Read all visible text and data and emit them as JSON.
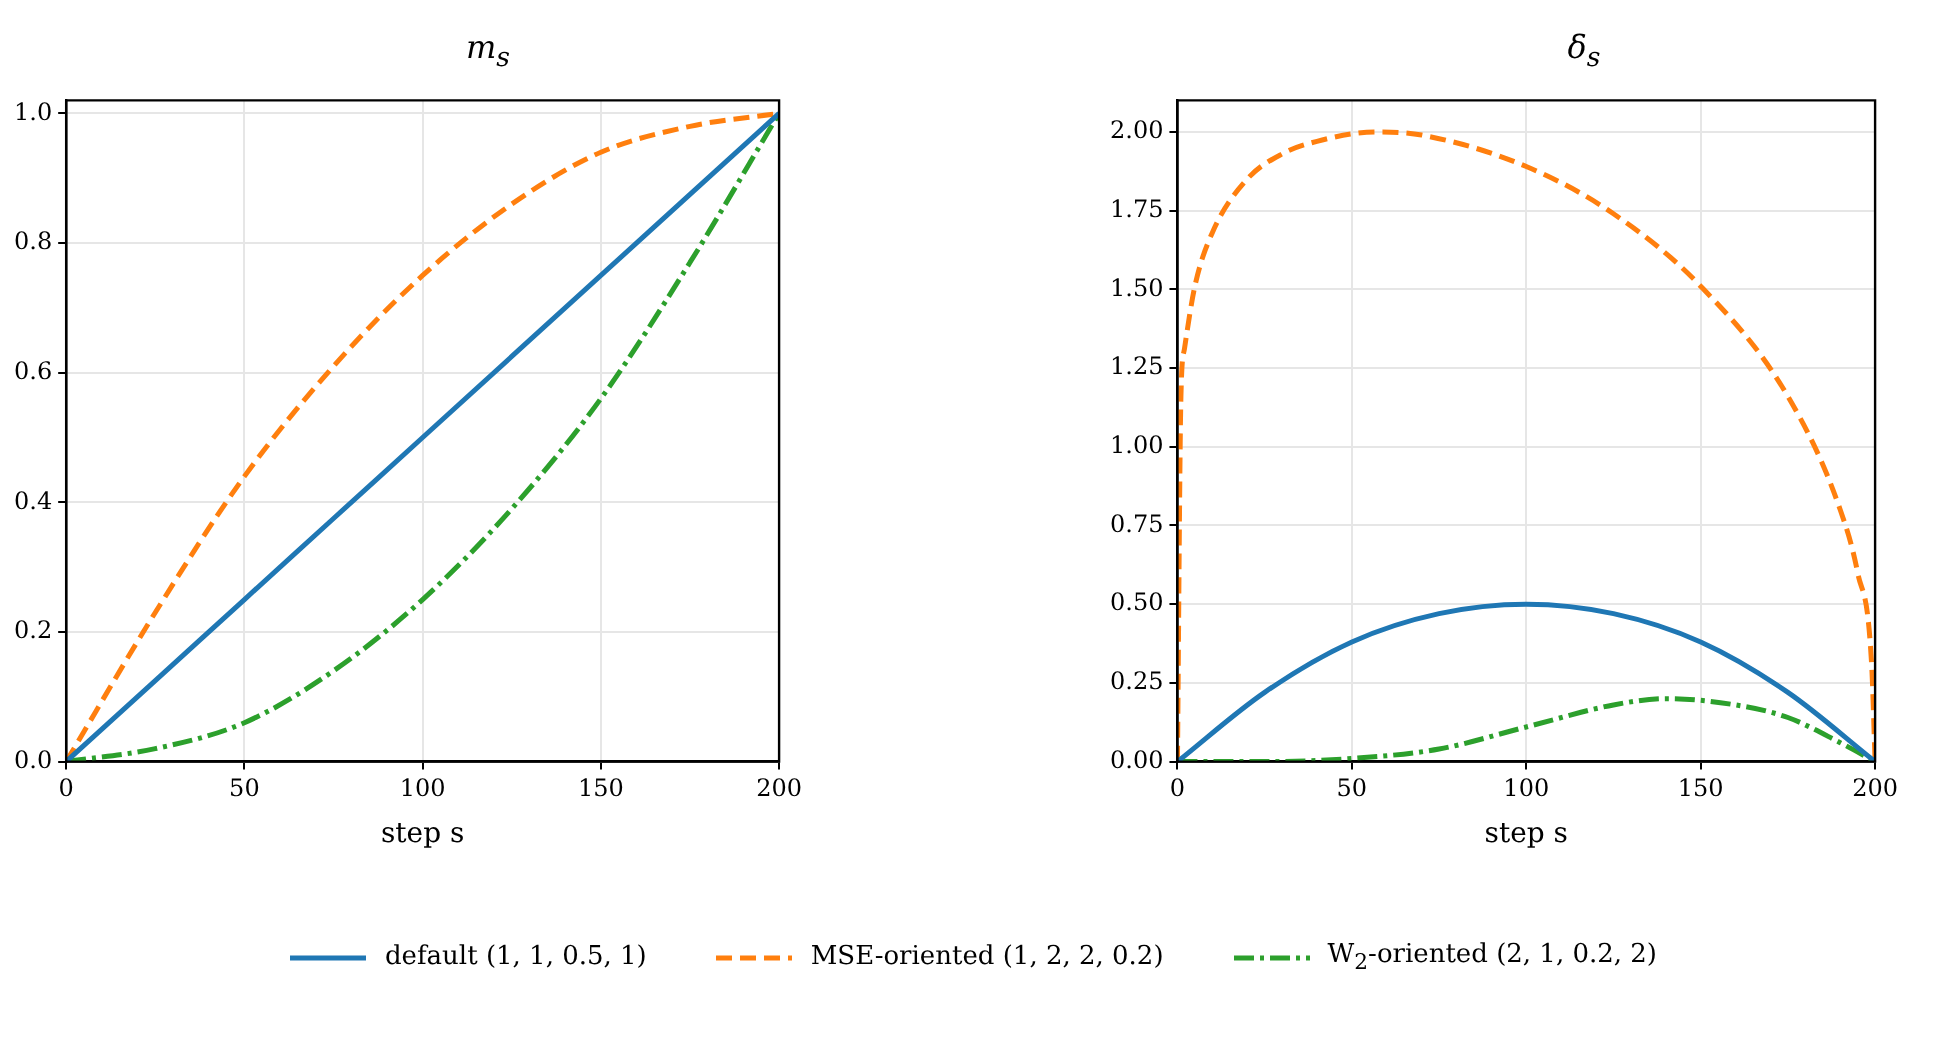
{
  "chart_data": [
    {
      "type": "line",
      "title": "m$_{s}$",
      "xlabel": "step s",
      "x": [
        0,
        25,
        50,
        75,
        100,
        125,
        150,
        175,
        200
      ],
      "xlim": [
        0,
        200
      ],
      "xticks": [
        0,
        50,
        100,
        150,
        200
      ],
      "ylim": [
        0,
        1.02
      ],
      "yticks": [
        {
          "value": 0,
          "label": "0.0"
        },
        {
          "value": 0.2,
          "label": "0.2"
        },
        {
          "value": 0.4,
          "label": "0.4"
        },
        {
          "value": 0.6,
          "label": "0.6"
        },
        {
          "value": 0.8,
          "label": "0.8"
        },
        {
          "value": 1,
          "label": "1.0"
        }
      ],
      "grid": true,
      "legend": "bottom",
      "series": [
        {
          "name": "default (1, 1, 0.5, 1)",
          "color": "#1f77b4",
          "line_style": "solid",
          "values": [
            0,
            0.125,
            0.25,
            0.375,
            0.5,
            0.625,
            0.75,
            0.875,
            1
          ]
        },
        {
          "name": "MSE-oriented (1, 2, 2, 0.2)",
          "color": "#ff7f0e",
          "line_style": "dashed",
          "values": [
            0,
            0.23,
            0.44,
            0.61,
            0.75,
            0.86,
            0.94,
            0.98,
            1
          ]
        },
        {
          "name": "W$_{2}$-oriented (2, 1, 0.2, 2)",
          "color": "#2ca02c",
          "line_style": "dashdot",
          "values": [
            0,
            0.02,
            0.06,
            0.14,
            0.25,
            0.39,
            0.56,
            0.77,
            1
          ]
        }
      ]
    },
    {
      "type": "line",
      "title": "δ$_{s}$",
      "xlabel": "step s",
      "x": [
        0,
        25,
        50,
        75,
        100,
        125,
        150,
        175,
        200
      ],
      "xlim": [
        0,
        200
      ],
      "xticks": [
        0,
        50,
        100,
        150,
        200
      ],
      "ylim": [
        0,
        2.1
      ],
      "yticks": [
        {
          "value": 0,
          "label": "0.00"
        },
        {
          "value": 0.25,
          "label": "0.25"
        },
        {
          "value": 0.5,
          "label": "0.50"
        },
        {
          "value": 0.75,
          "label": "0.75"
        },
        {
          "value": 1,
          "label": "1.00"
        },
        {
          "value": 1.25,
          "label": "1.25"
        },
        {
          "value": 1.5,
          "label": "1.50"
        },
        {
          "value": 1.75,
          "label": "1.75"
        },
        {
          "value": 2,
          "label": "2.00"
        }
      ],
      "grid": true,
      "series": [
        {
          "name": "default (1, 1, 0.5, 1)",
          "color": "#1f77b4",
          "line_style": "solid",
          "values": [
            0,
            0.22,
            0.38,
            0.47,
            0.5,
            0.47,
            0.38,
            0.22,
            0
          ]
        },
        {
          "name": "MSE-oriented (1, 2, 2, 0.2)",
          "color": "#ff7f0e",
          "line_style": "dashed",
          "x": [
            0,
            1,
            2,
            5,
            10,
            20,
            30,
            40,
            57,
            70,
            100,
            125,
            150,
            175,
            190,
            195,
            199,
            200
          ],
          "values": [
            0,
            1.16,
            1.31,
            1.51,
            1.68,
            1.85,
            1.93,
            1.97,
            2,
            1.99,
            1.89,
            1.74,
            1.51,
            1.16,
            0.8,
            0.6,
            0.31,
            0
          ]
        },
        {
          "name": "W$_{2}$-oriented (2, 1, 0.2, 2)",
          "color": "#2ca02c",
          "line_style": "dashdot",
          "x": [
            0,
            25,
            50,
            75,
            100,
            125,
            140,
            160,
            175,
            190,
            200
          ],
          "values": [
            0,
            0,
            0.01,
            0.04,
            0.11,
            0.18,
            0.2,
            0.18,
            0.14,
            0.06,
            0
          ]
        }
      ]
    }
  ]
}
